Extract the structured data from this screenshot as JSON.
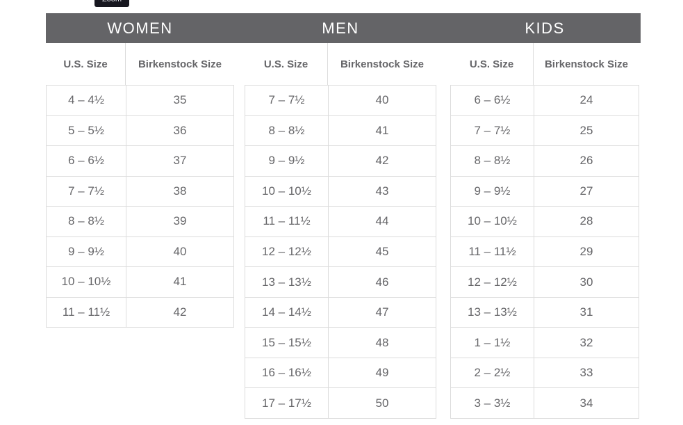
{
  "tooltip": {
    "label": "Zoom"
  },
  "colors": {
    "band_background": "#646467",
    "band_text": "#ffffff",
    "table_text": "#666669",
    "table_border": "#dcdcdc",
    "tooltip_background": "#17171f"
  },
  "chart_data": [
    {
      "type": "table",
      "title": "WOMEN",
      "columns": [
        "U.S. Size",
        "Birkenstock Size"
      ],
      "rows": [
        [
          "4 – 4½",
          "35"
        ],
        [
          "5 – 5½",
          "36"
        ],
        [
          "6 – 6½",
          "37"
        ],
        [
          "7 – 7½",
          "38"
        ],
        [
          "8 – 8½",
          "39"
        ],
        [
          "9 – 9½",
          "40"
        ],
        [
          "10 – 10½",
          "41"
        ],
        [
          "11 – 11½",
          "42"
        ]
      ]
    },
    {
      "type": "table",
      "title": "MEN",
      "columns": [
        "U.S. Size",
        "Birkenstock Size"
      ],
      "rows": [
        [
          "7 – 7½",
          "40"
        ],
        [
          "8 – 8½",
          "41"
        ],
        [
          "9 – 9½",
          "42"
        ],
        [
          "10 – 10½",
          "43"
        ],
        [
          "11 – 11½",
          "44"
        ],
        [
          "12 – 12½",
          "45"
        ],
        [
          "13 – 13½",
          "46"
        ],
        [
          "14 – 14½",
          "47"
        ],
        [
          "15 – 15½",
          "48"
        ],
        [
          "16 – 16½",
          "49"
        ],
        [
          "17 – 17½",
          "50"
        ]
      ]
    },
    {
      "type": "table",
      "title": "KIDS",
      "columns": [
        "U.S. Size",
        "Birkenstock Size"
      ],
      "rows": [
        [
          "6 – 6½",
          "24"
        ],
        [
          "7 – 7½",
          "25"
        ],
        [
          "8 – 8½",
          "26"
        ],
        [
          "9 – 9½",
          "27"
        ],
        [
          "10 – 10½",
          "28"
        ],
        [
          "11 – 11½",
          "29"
        ],
        [
          "12 – 12½",
          "30"
        ],
        [
          "13 – 13½",
          "31"
        ],
        [
          "1 – 1½",
          "32"
        ],
        [
          "2 – 2½",
          "33"
        ],
        [
          "3 – 3½",
          "34"
        ]
      ]
    }
  ]
}
